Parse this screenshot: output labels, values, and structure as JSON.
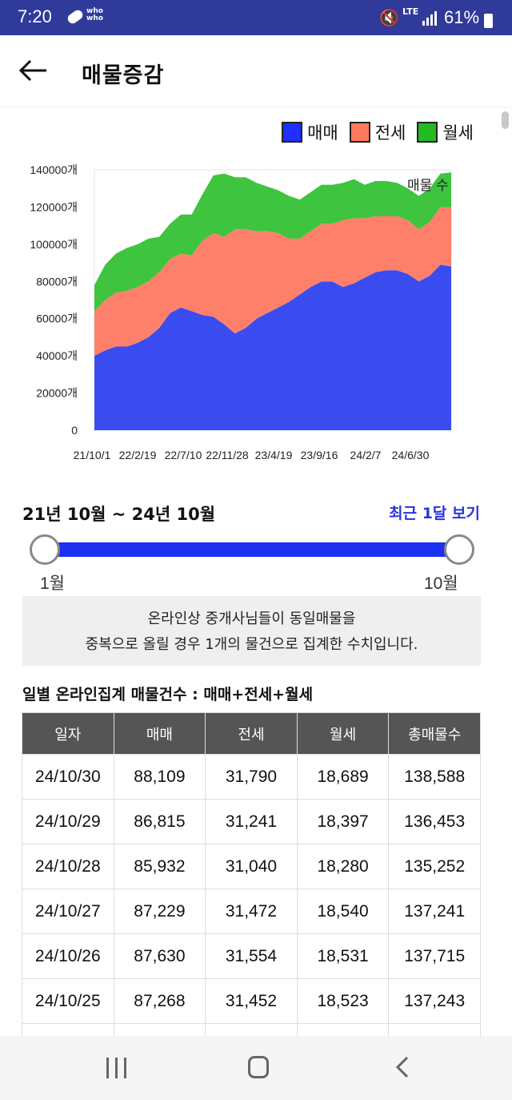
{
  "status_bar": {
    "time": "7:20",
    "network": "LTE",
    "battery": "61%",
    "whowho": "who\nwho"
  },
  "header": {
    "title": "매물증감"
  },
  "legend": [
    {
      "label": "매매",
      "color": "#1f2fff"
    },
    {
      "label": "전세",
      "color": "#ff7a5c"
    },
    {
      "label": "월세",
      "color": "#22bb22"
    }
  ],
  "chart_data": {
    "type": "area",
    "stacked": true,
    "series_label": "매물 수",
    "x_ticks": [
      "21/10/1",
      "22/2/19",
      "22/7/10",
      "22/11/28",
      "23/4/19",
      "23/9/16",
      "24/2/7",
      "24/6/30"
    ],
    "y_ticks": [
      "0",
      "20000개",
      "40000개",
      "60000개",
      "80000개",
      "100000개",
      "120000개",
      "140000개"
    ],
    "ylim": [
      0,
      140000
    ],
    "x_range": [
      "21/10/1",
      "24/10/30"
    ],
    "series": [
      {
        "name": "매매",
        "color": "#3a4cf0",
        "values": [
          40000,
          43000,
          45000,
          45000,
          47000,
          50000,
          55000,
          63000,
          66000,
          64000,
          62000,
          61000,
          57000,
          52000,
          55000,
          60000,
          63000,
          66000,
          69000,
          73000,
          77000,
          80000,
          80000,
          77000,
          79000,
          82000,
          85000,
          86000,
          86000,
          84000,
          80000,
          83000,
          89000,
          88109
        ]
      },
      {
        "name": "전세",
        "color": "#ff806a",
        "values": [
          24000,
          27000,
          29000,
          30000,
          30000,
          30000,
          30000,
          29000,
          29000,
          30000,
          40000,
          45000,
          47000,
          56000,
          53000,
          47000,
          44000,
          40000,
          34000,
          30000,
          30000,
          31000,
          31000,
          36000,
          35000,
          32000,
          30000,
          29000,
          29000,
          29000,
          28000,
          29000,
          31000,
          31790
        ]
      },
      {
        "name": "월세",
        "color": "#3ec43e",
        "values": [
          14000,
          19000,
          21000,
          23000,
          23000,
          23000,
          19000,
          19000,
          21000,
          22000,
          25000,
          31000,
          34000,
          28000,
          28000,
          26000,
          24000,
          23000,
          23000,
          21000,
          21000,
          21000,
          21000,
          20000,
          21000,
          18000,
          19000,
          19000,
          18000,
          17000,
          18000,
          18000,
          18000,
          18689
        ]
      }
    ]
  },
  "range": {
    "title": "21년 10월 ~ 24년 10월",
    "button": "최근 1달 보기",
    "start_label": "1월",
    "end_label": "10월"
  },
  "notice": {
    "line1": "온라인상 중개사님들이 동일매물을",
    "line2": "중복으로 올릴 경우 1개의 물건으로 집계한 수치입니다."
  },
  "table": {
    "title": "일별 온라인집계 매물건수 : 매매+전세+월세",
    "headers": [
      "일자",
      "매매",
      "전세",
      "월세",
      "총매물수"
    ],
    "rows": [
      [
        "24/10/30",
        "88,109",
        "31,790",
        "18,689",
        "138,588"
      ],
      [
        "24/10/29",
        "86,815",
        "31,241",
        "18,397",
        "136,453"
      ],
      [
        "24/10/28",
        "85,932",
        "31,040",
        "18,280",
        "135,252"
      ],
      [
        "24/10/27",
        "87,229",
        "31,472",
        "18,540",
        "137,241"
      ],
      [
        "24/10/26",
        "87,630",
        "31,554",
        "18,531",
        "137,715"
      ],
      [
        "24/10/25",
        "87,268",
        "31,452",
        "18,523",
        "137,243"
      ],
      [
        "",
        "",
        "",
        "",
        ""
      ]
    ]
  }
}
